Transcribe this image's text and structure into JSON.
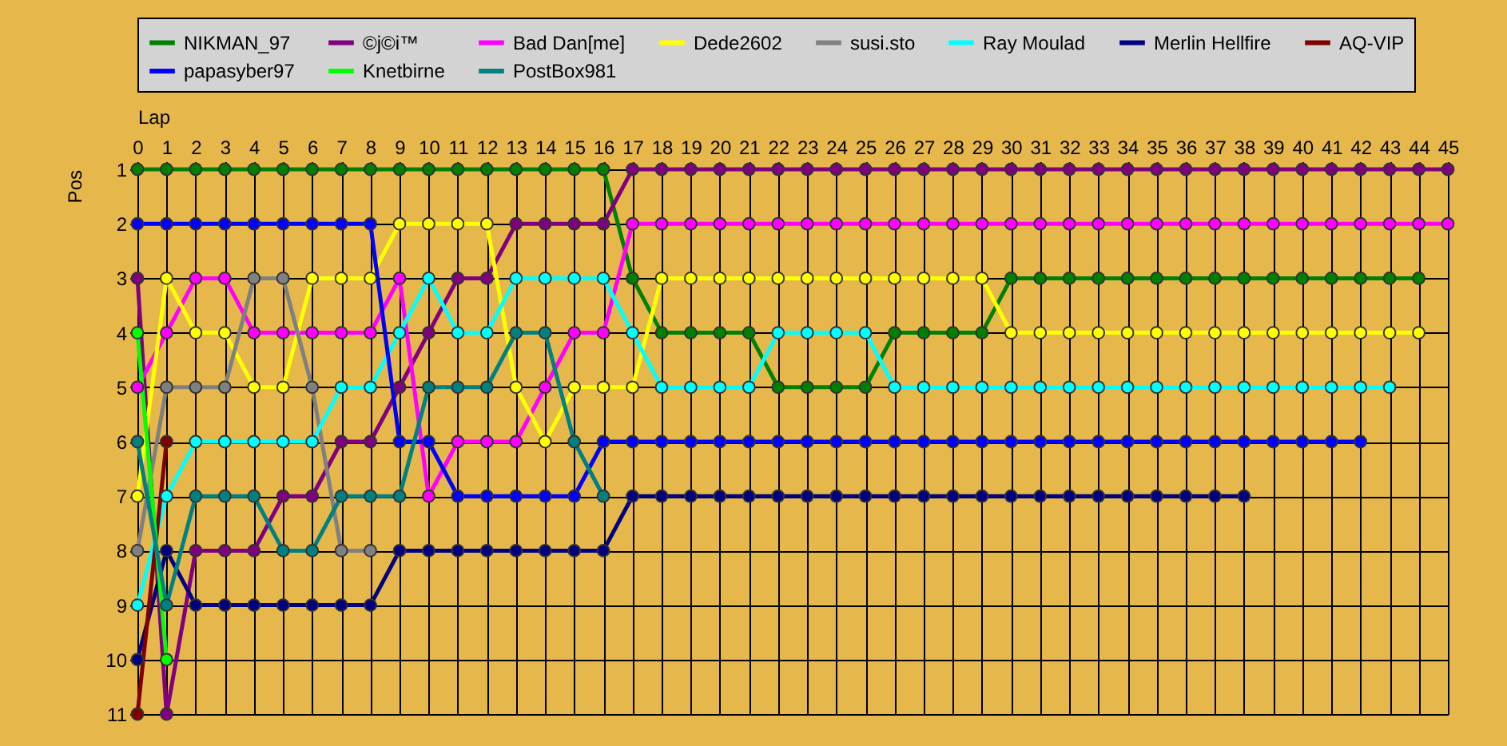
{
  "chart_data": {
    "type": "line",
    "xlabel": "Lap",
    "ylabel": "Pos",
    "grid": true,
    "legend": "top",
    "marker": "circle",
    "line_style": "solid",
    "x": [
      0,
      1,
      2,
      3,
      4,
      5,
      6,
      7,
      8,
      9,
      10,
      11,
      12,
      13,
      14,
      15,
      16,
      17,
      18,
      19,
      20,
      21,
      22,
      23,
      24,
      25,
      26,
      27,
      28,
      29,
      30,
      31,
      32,
      33,
      34,
      35,
      36,
      37,
      38,
      39,
      40,
      41,
      42,
      43,
      44,
      45
    ],
    "xlim": [
      0,
      45
    ],
    "xticks": [
      0,
      1,
      2,
      3,
      4,
      5,
      6,
      7,
      8,
      9,
      10,
      11,
      12,
      13,
      14,
      15,
      16,
      17,
      18,
      19,
      20,
      21,
      22,
      23,
      24,
      25,
      26,
      27,
      28,
      29,
      30,
      31,
      32,
      33,
      34,
      35,
      36,
      37,
      38,
      39,
      40,
      41,
      42,
      43,
      44,
      45
    ],
    "ylim": [
      11,
      1
    ],
    "yticks": [
      1,
      2,
      3,
      4,
      5,
      6,
      7,
      8,
      9,
      10,
      11
    ],
    "series": [
      {
        "name": "NIKMAN_97",
        "color": "#008000",
        "values": [
          1,
          1,
          1,
          1,
          1,
          1,
          1,
          1,
          1,
          1,
          1,
          1,
          1,
          1,
          1,
          1,
          1,
          3,
          4,
          4,
          4,
          4,
          5,
          5,
          5,
          5,
          4,
          4,
          4,
          4,
          3,
          3,
          3,
          3,
          3,
          3,
          3,
          3,
          3,
          3,
          3,
          3,
          3,
          3,
          3,
          null
        ]
      },
      {
        "name": "©j©i™",
        "color": "#800080",
        "values": [
          3,
          11,
          8,
          8,
          8,
          7,
          7,
          6,
          6,
          5,
          4,
          3,
          3,
          2,
          2,
          2,
          2,
          1,
          1,
          1,
          1,
          1,
          1,
          1,
          1,
          1,
          1,
          1,
          1,
          1,
          1,
          1,
          1,
          1,
          1,
          1,
          1,
          1,
          1,
          1,
          1,
          1,
          1,
          1,
          1,
          1
        ]
      },
      {
        "name": "Bad Dan[me]",
        "color": "#ff00ff",
        "values": [
          5,
          4,
          3,
          3,
          4,
          4,
          4,
          4,
          4,
          3,
          7,
          6,
          6,
          6,
          5,
          4,
          4,
          2,
          2,
          2,
          2,
          2,
          2,
          2,
          2,
          2,
          2,
          2,
          2,
          2,
          2,
          2,
          2,
          2,
          2,
          2,
          2,
          2,
          2,
          2,
          2,
          2,
          2,
          2,
          2,
          2
        ]
      },
      {
        "name": "Dede2602",
        "color": "#ffff00",
        "values": [
          7,
          3,
          4,
          4,
          5,
          5,
          3,
          3,
          3,
          2,
          2,
          2,
          2,
          5,
          6,
          5,
          5,
          5,
          3,
          3,
          3,
          3,
          3,
          3,
          3,
          3,
          3,
          3,
          3,
          3,
          4,
          4,
          4,
          4,
          4,
          4,
          4,
          4,
          4,
          4,
          4,
          4,
          4,
          4,
          4,
          null
        ]
      },
      {
        "name": "susi.sto",
        "color": "#808080",
        "values": [
          8,
          5,
          5,
          5,
          3,
          3,
          5,
          8,
          8,
          null,
          null,
          null,
          null,
          null,
          null,
          null,
          null,
          null,
          null,
          null,
          null,
          null,
          null,
          null,
          null,
          null,
          null,
          null,
          null,
          null,
          null,
          null,
          null,
          null,
          null,
          null,
          null,
          null,
          null,
          null,
          null,
          null,
          null,
          null,
          null,
          null
        ]
      },
      {
        "name": "Ray Moulad",
        "color": "#00ffff",
        "values": [
          9,
          7,
          6,
          6,
          6,
          6,
          6,
          5,
          5,
          4,
          3,
          4,
          4,
          3,
          3,
          3,
          3,
          4,
          5,
          5,
          5,
          5,
          4,
          4,
          4,
          4,
          5,
          5,
          5,
          5,
          5,
          5,
          5,
          5,
          5,
          5,
          5,
          5,
          5,
          5,
          5,
          5,
          5,
          5,
          null,
          null
        ]
      },
      {
        "name": "Merlin Hellfire",
        "color": "#000080",
        "values": [
          10,
          8,
          9,
          9,
          9,
          9,
          9,
          9,
          9,
          8,
          8,
          8,
          8,
          8,
          8,
          8,
          8,
          7,
          7,
          7,
          7,
          7,
          7,
          7,
          7,
          7,
          7,
          7,
          7,
          7,
          7,
          7,
          7,
          7,
          7,
          7,
          7,
          7,
          7,
          null,
          null,
          null,
          null,
          null,
          null,
          null
        ]
      },
      {
        "name": "AQ-VIP",
        "color": "#800000",
        "values": [
          11,
          6,
          null,
          null,
          null,
          null,
          null,
          null,
          null,
          null,
          null,
          null,
          null,
          null,
          null,
          null,
          null,
          null,
          null,
          null,
          null,
          null,
          null,
          null,
          null,
          null,
          null,
          null,
          null,
          null,
          null,
          null,
          null,
          null,
          null,
          null,
          null,
          null,
          null,
          null,
          null,
          null,
          null,
          null,
          null,
          null
        ]
      },
      {
        "name": "papasyber97",
        "color": "#0000ff",
        "values": [
          2,
          2,
          2,
          2,
          2,
          2,
          2,
          2,
          2,
          6,
          6,
          7,
          7,
          7,
          7,
          7,
          6,
          6,
          6,
          6,
          6,
          6,
          6,
          6,
          6,
          6,
          6,
          6,
          6,
          6,
          6,
          6,
          6,
          6,
          6,
          6,
          6,
          6,
          6,
          6,
          6,
          6,
          6,
          null,
          null,
          null
        ]
      },
      {
        "name": "Knetbirne",
        "color": "#00ff00",
        "values": [
          4,
          10,
          null,
          null,
          null,
          null,
          null,
          null,
          null,
          null,
          null,
          null,
          null,
          null,
          null,
          null,
          null,
          null,
          null,
          null,
          null,
          null,
          null,
          null,
          null,
          null,
          null,
          null,
          null,
          null,
          null,
          null,
          null,
          null,
          null,
          null,
          null,
          null,
          null,
          null,
          null,
          null,
          null,
          null,
          null,
          null
        ]
      },
      {
        "name": "PostBox981",
        "color": "#008080",
        "values": [
          6,
          9,
          7,
          7,
          7,
          8,
          8,
          7,
          7,
          7,
          5,
          5,
          5,
          4,
          4,
          6,
          7,
          null,
          null,
          null,
          null,
          null,
          null,
          null,
          null,
          null,
          null,
          null,
          null,
          null,
          null,
          null,
          null,
          null,
          null,
          null,
          null,
          null,
          null,
          null,
          null,
          null,
          null,
          null,
          null,
          null
        ]
      }
    ]
  }
}
